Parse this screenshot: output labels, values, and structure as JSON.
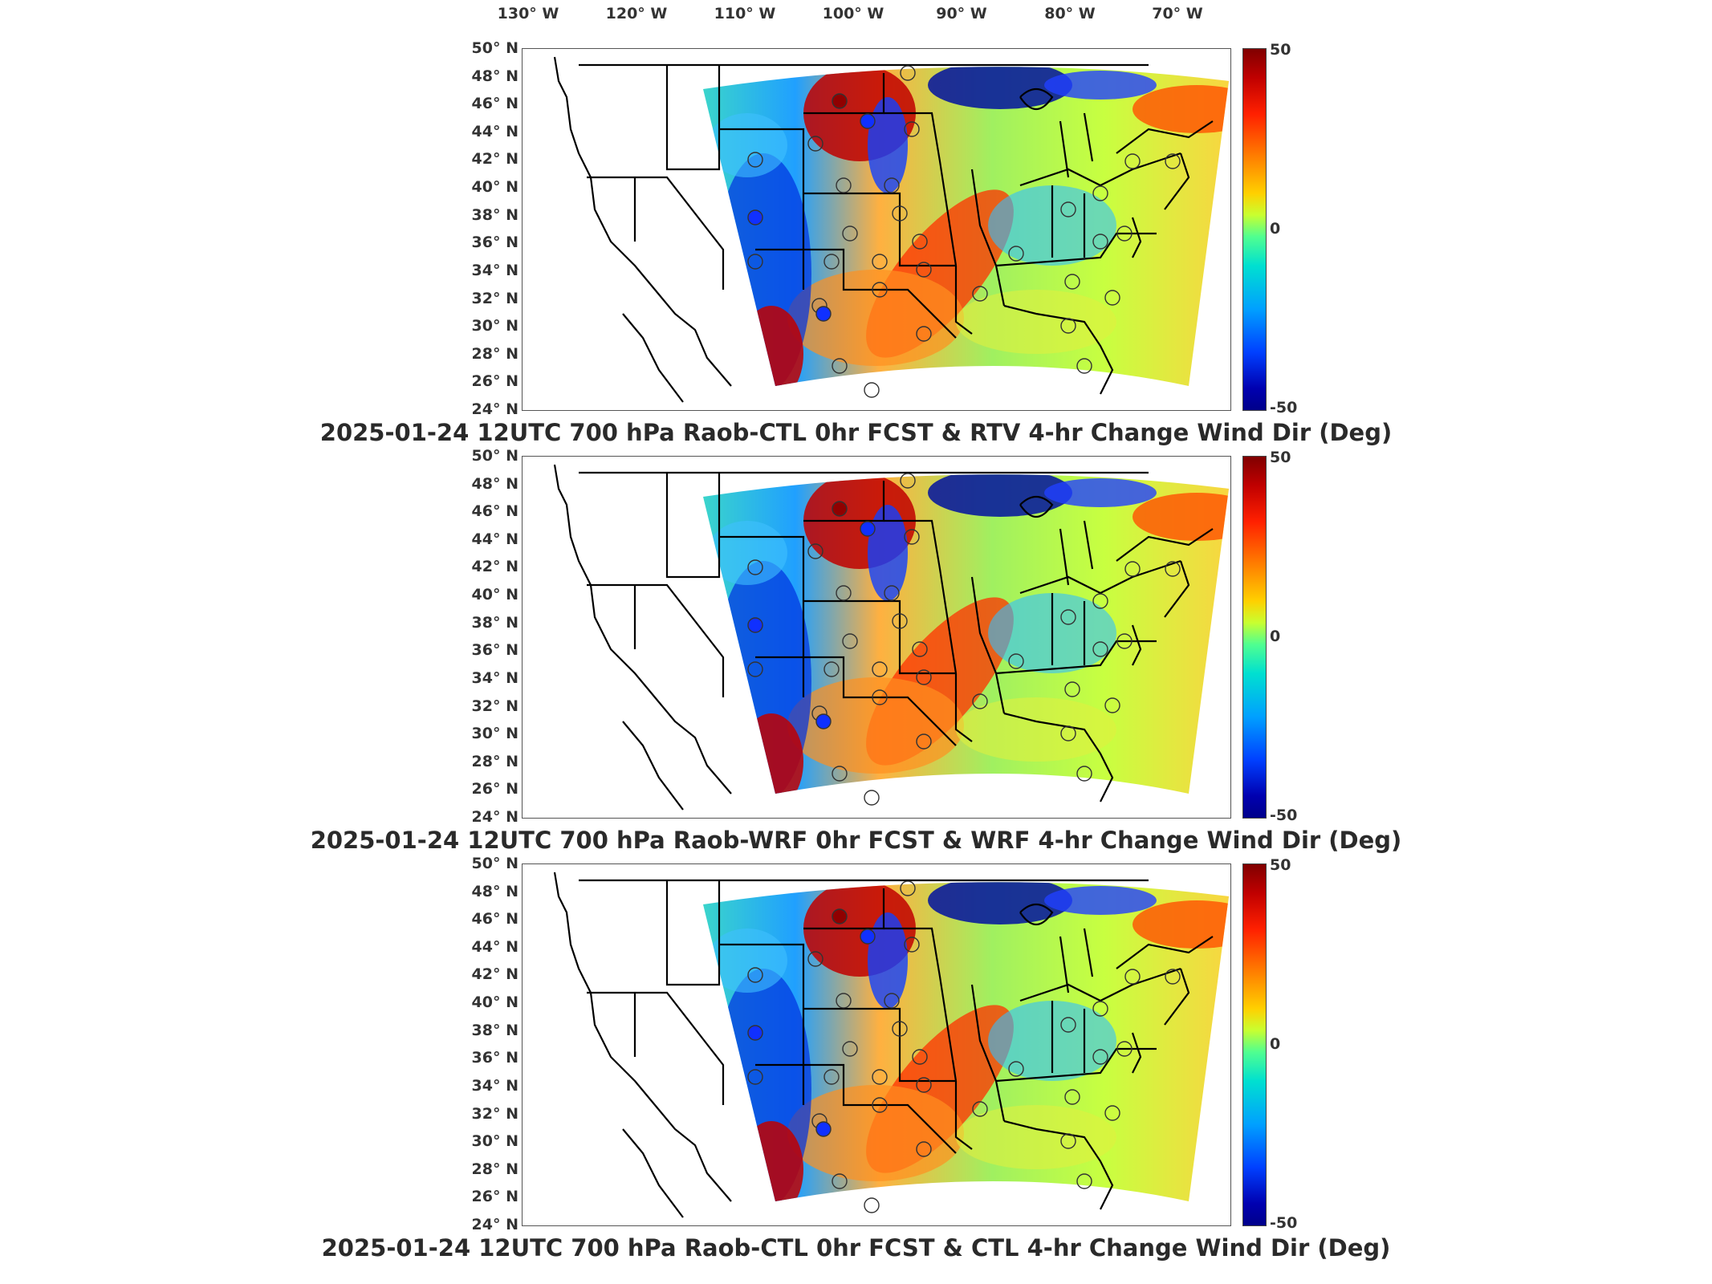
{
  "longitude_labels": [
    "130° W",
    "120° W",
    "110° W",
    "100° W",
    "90° W",
    "80° W",
    "70° W"
  ],
  "latitude_labels": [
    "50° N",
    "48° N",
    "46° N",
    "44° N",
    "42° N",
    "40° N",
    "38° N",
    "36° N",
    "34° N",
    "32° N",
    "30° N",
    "28° N",
    "26° N",
    "24° N"
  ],
  "colorbar": {
    "max_label": "50",
    "mid_label": "0",
    "min_label": "-50",
    "range": [
      -50,
      50
    ],
    "colormap": "jet"
  },
  "panels": [
    {
      "title": "2025-01-24 12UTC 700 hPa Raob-CTL 0hr FCST & RTV 4-hr Change Wind Dir (Deg)"
    },
    {
      "title": "2025-01-24 12UTC 700 hPa Raob-WRF 0hr FCST & WRF 4-hr Change Wind Dir (Deg)"
    },
    {
      "title": "2025-01-24 12UTC 700 hPa Raob-CTL 0hr FCST & CTL 4-hr Change Wind Dir (Deg)"
    }
  ],
  "colors": {
    "frame": "#555555",
    "coast": "#000000",
    "title": "#2a2a2a"
  }
}
